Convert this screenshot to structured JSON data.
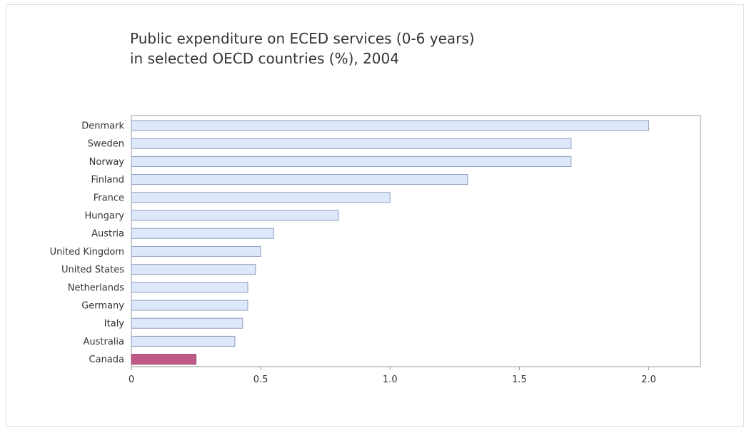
{
  "chart_data": {
    "type": "bar",
    "orientation": "horizontal",
    "title": "Public expenditure on ECED services (0-6 years)\nin selected OECD countries (%), 2004",
    "categories": [
      "Denmark",
      "Sweden",
      "Norway",
      "Finland",
      "France",
      "Hungary",
      "Austria",
      "United Kingdom",
      "United States",
      "Netherlands",
      "Germany",
      "Italy",
      "Australia",
      "Canada"
    ],
    "values": [
      2.0,
      1.7,
      1.7,
      1.3,
      1.0,
      0.8,
      0.55,
      0.5,
      0.48,
      0.45,
      0.45,
      0.43,
      0.4,
      0.25
    ],
    "xlim": [
      0,
      2.2
    ],
    "xticks": [
      0,
      0.5,
      1.0,
      1.5,
      2.0
    ],
    "xtick_labels": [
      "0",
      "0.5",
      "1.0",
      "1.5",
      "2.0"
    ],
    "grid": false,
    "legend": "none",
    "colors": {
      "bar_fill": "#dde8fb",
      "bar_stroke": "#8e9dbf",
      "highlight_fill": "#bf5a86",
      "highlight_stroke": "#a14670",
      "axis": "#9a9a9a"
    },
    "highlight_category": "Canada"
  }
}
